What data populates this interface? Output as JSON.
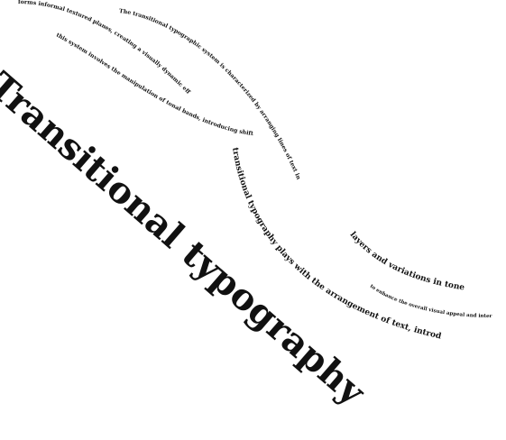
{
  "title": "Transitional typography",
  "lines": [
    "forms informal textured planes, creating a visually dynamic effect.",
    "The transitional typographic system is characterized by arranging lines of text in a way that",
    "this system involves the manipulation of tonal bands, introducing shifts in contrast",
    "transitional typography plays with the arrangement of text, introducing",
    "layers and variations in tone",
    "to enhance the overall visual appeal and interest."
  ],
  "colors": {
    "ink": "#111111",
    "background": "#ffffff"
  }
}
